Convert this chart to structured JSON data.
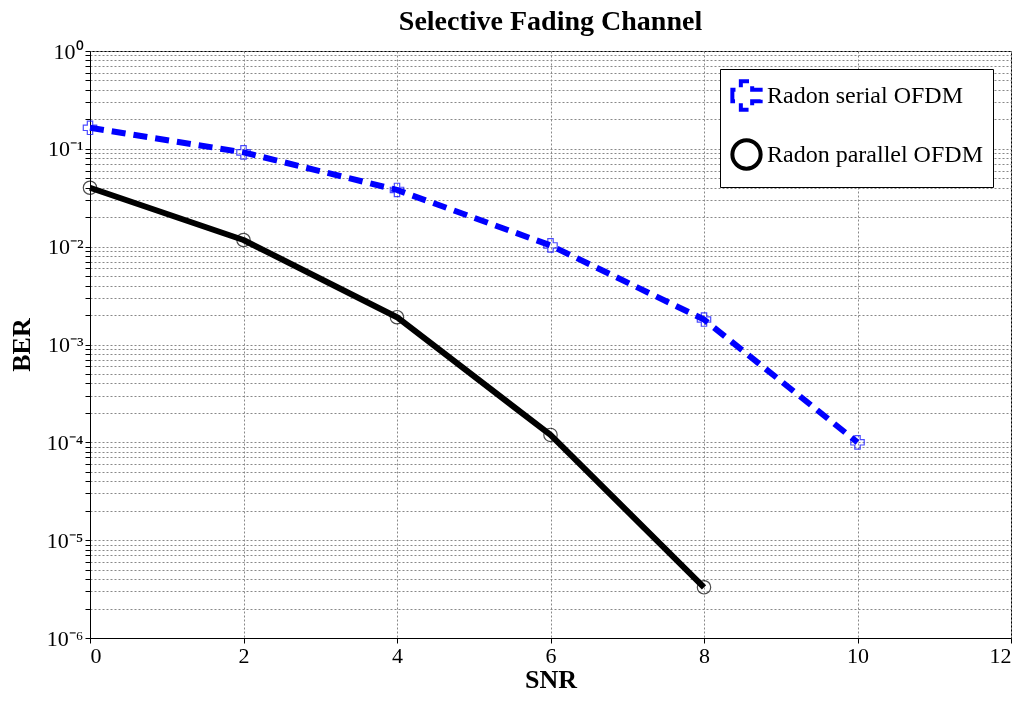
{
  "chart_data": {
    "type": "line",
    "title": "Selective Fading Channel",
    "xlabel": "SNR",
    "ylabel": "BER",
    "x": [
      0,
      2,
      4,
      6,
      8,
      10
    ],
    "series": [
      {
        "name": "Radon serial OFDM",
        "color": "#0000ff",
        "values": [
          0.164,
          0.092,
          0.038,
          0.0103,
          0.0018,
          0.0001
        ],
        "marker": "cross",
        "line_style": "dashed"
      },
      {
        "name": "Radon parallel OFDM",
        "color": "#000000",
        "values": [
          0.04,
          0.0117,
          0.0019,
          0.000119,
          3.3e-06,
          null
        ],
        "marker": "circle",
        "line_style": "solid"
      }
    ],
    "log": "y",
    "xlim": [
      0,
      12
    ],
    "ylim": [
      1e-06,
      1
    ],
    "xticks": [
      0,
      2,
      4,
      6,
      8,
      10,
      12
    ],
    "yticks": [
      {
        "value": 1e-06,
        "label": "10⁻⁶"
      },
      {
        "value": 2e-06,
        "label": null
      },
      {
        "value": 3e-06,
        "label": null
      },
      {
        "value": 4e-06,
        "label": null
      },
      {
        "value": 5e-06,
        "label": null
      },
      {
        "value": 6e-06,
        "label": null
      },
      {
        "value": 7e-06,
        "label": null
      },
      {
        "value": 8e-06,
        "label": null
      },
      {
        "value": 9e-06,
        "label": null
      },
      {
        "value": 1e-05,
        "label": "10⁻⁵"
      },
      {
        "value": 2e-05,
        "label": null
      },
      {
        "value": 3e-05,
        "label": null
      },
      {
        "value": 4e-05,
        "label": null
      },
      {
        "value": 5e-05,
        "label": null
      },
      {
        "value": 6e-05,
        "label": null
      },
      {
        "value": 7e-05,
        "label": null
      },
      {
        "value": 8e-05,
        "label": null
      },
      {
        "value": 9e-05,
        "label": null
      },
      {
        "value": 0.0001,
        "label": "10⁻⁴"
      },
      {
        "value": 0.0002,
        "label": null
      },
      {
        "value": 0.0003,
        "label": null
      },
      {
        "value": 0.0004,
        "label": null
      },
      {
        "value": 0.0005,
        "label": null
      },
      {
        "value": 0.0006,
        "label": null
      },
      {
        "value": 0.0007,
        "label": null
      },
      {
        "value": 0.0008,
        "label": null
      },
      {
        "value": 0.0009,
        "label": null
      },
      {
        "value": 0.001,
        "label": "10⁻³"
      },
      {
        "value": 0.002,
        "label": null
      },
      {
        "value": 0.003,
        "label": null
      },
      {
        "value": 0.004,
        "label": null
      },
      {
        "value": 0.005,
        "label": null
      },
      {
        "value": 0.006,
        "label": null
      },
      {
        "value": 0.007,
        "label": null
      },
      {
        "value": 0.008,
        "label": null
      },
      {
        "value": 0.009,
        "label": null
      },
      {
        "value": 0.01,
        "label": "10⁻²"
      },
      {
        "value": 0.02,
        "label": null
      },
      {
        "value": 0.03,
        "label": null
      },
      {
        "value": 0.04,
        "label": null
      },
      {
        "value": 0.05,
        "label": null
      },
      {
        "value": 0.06,
        "label": null
      },
      {
        "value": 0.07,
        "label": null
      },
      {
        "value": 0.08,
        "label": null
      },
      {
        "value": 0.09,
        "label": null
      },
      {
        "value": 0.1,
        "label": "10⁻¹"
      },
      {
        "value": 0.2,
        "label": null
      },
      {
        "value": 0.3,
        "label": null
      },
      {
        "value": 0.4,
        "label": null
      },
      {
        "value": 0.5,
        "label": null
      },
      {
        "value": 0.6,
        "label": null
      },
      {
        "value": 0.7,
        "label": null
      },
      {
        "value": 0.8,
        "label": null
      },
      {
        "value": 0.9,
        "label": null
      },
      {
        "value": 1,
        "label": "10⁰"
      }
    ],
    "grid": true,
    "legend": "top right"
  }
}
